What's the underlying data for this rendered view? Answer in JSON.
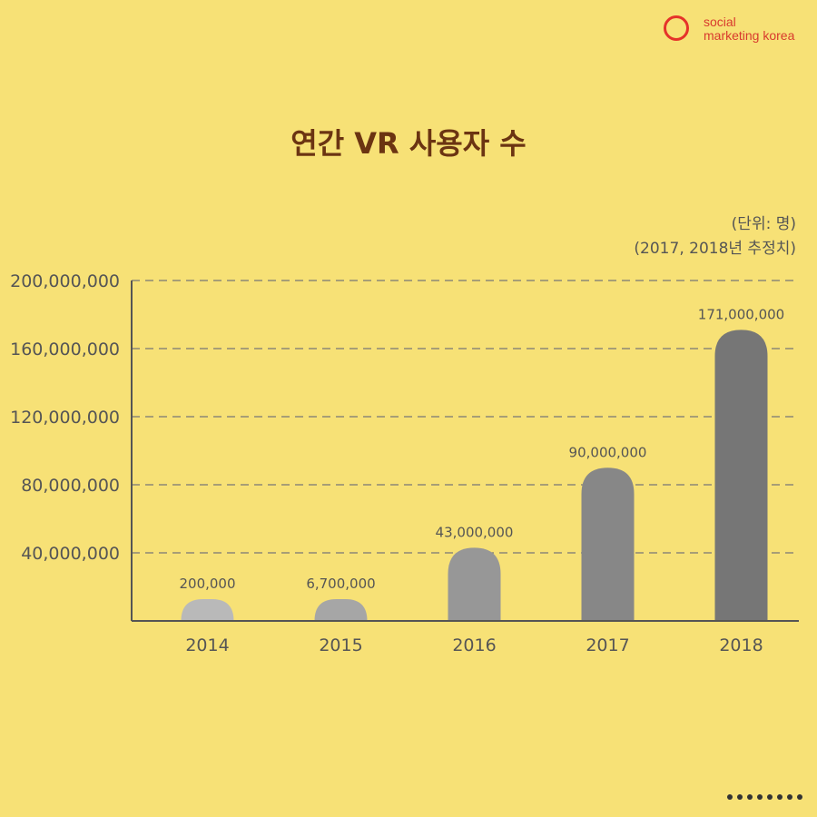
{
  "logo": {
    "line1": "social",
    "line2": "marketing korea",
    "ring_color": "#e5332a"
  },
  "title": "연간 VR 사용자 수",
  "unit_note": {
    "unit": "(단위: 명)",
    "note": "(2017, 2018년 추정치)"
  },
  "chart_data": {
    "type": "bar",
    "title": "연간 VR 사용자 수",
    "xlabel": "",
    "ylabel": "",
    "categories": [
      "2014",
      "2015",
      "2016",
      "2017",
      "2018"
    ],
    "values": [
      200000,
      6700000,
      43000000,
      90000000,
      171000000
    ],
    "value_labels": [
      "200,000",
      "6,700,000",
      "43,000,000",
      "90,000,000",
      "171,000,000"
    ],
    "estimated": [
      "2017",
      "2018"
    ],
    "ylim": [
      0,
      200000000
    ],
    "yticks": [
      40000000,
      80000000,
      120000000,
      160000000,
      200000000
    ],
    "ytick_labels": [
      "40,000,000",
      "80,000,000",
      "120,000,000",
      "160,000,000",
      "200,000,000"
    ],
    "grid": true,
    "bar_colors": [
      "#b9b9b9",
      "#a6a6a6",
      "#979797",
      "#878787",
      "#767676"
    ]
  },
  "pagination": {
    "count": 8
  }
}
